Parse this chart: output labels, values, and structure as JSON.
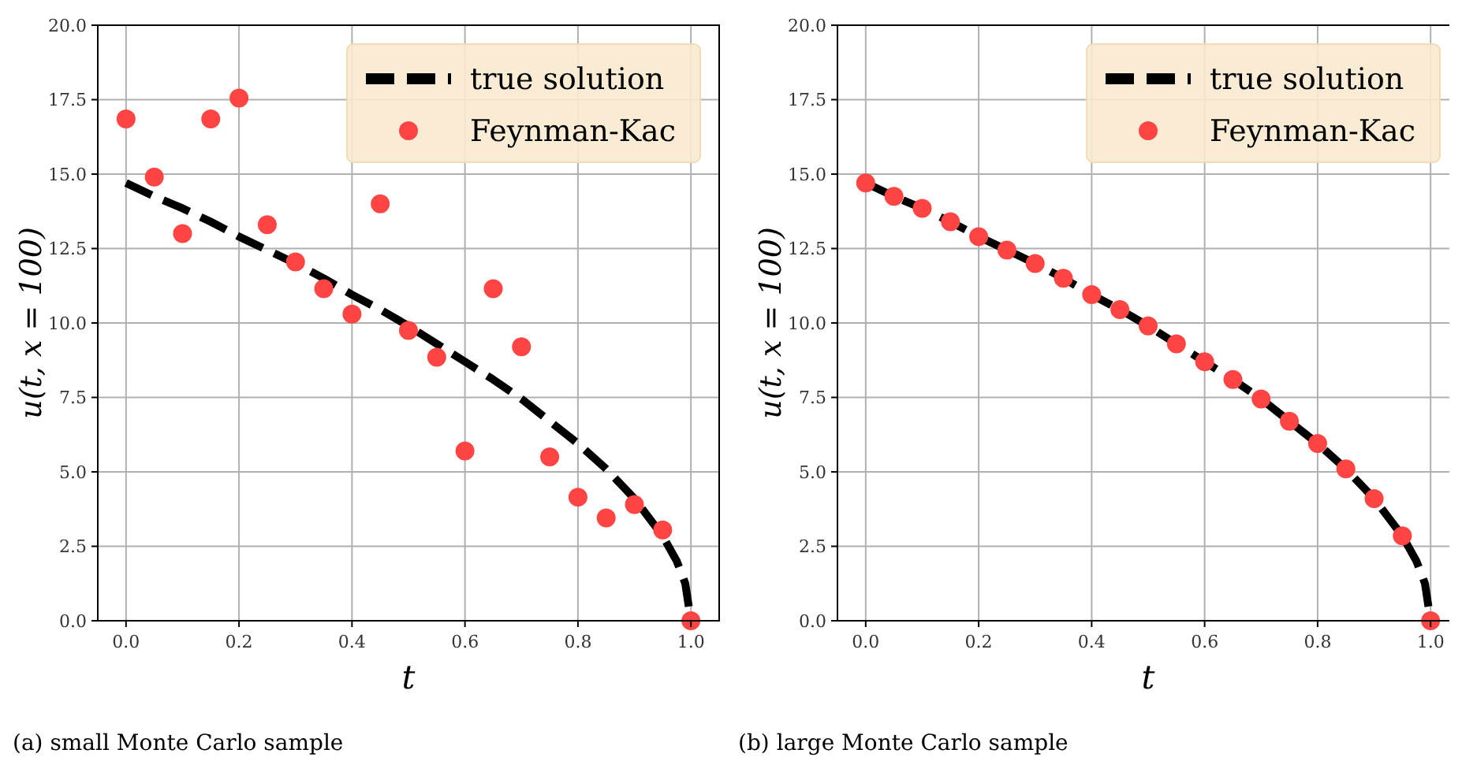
{
  "chart_data": [
    {
      "type": "scatter",
      "title": "(a) small Monte Carlo sample",
      "xlabel": "t",
      "ylabel": "u(t, x = 100)",
      "xlim": [
        -0.05,
        1.05
      ],
      "ylim": [
        0,
        20
      ],
      "xticks": [
        {
          "value": 0,
          "label": "0.0"
        },
        {
          "value": 0.2,
          "label": "0.2"
        },
        {
          "value": 0.4,
          "label": "0.4"
        },
        {
          "value": 0.6,
          "label": "0.6"
        },
        {
          "value": 0.8,
          "label": "0.8"
        },
        {
          "value": 1,
          "label": "1.0"
        }
      ],
      "yticks": [
        {
          "value": 0,
          "label": "0.0"
        },
        {
          "value": 2.5,
          "label": "2.5"
        },
        {
          "value": 5,
          "label": "5.0"
        },
        {
          "value": 7.5,
          "label": "7.5"
        },
        {
          "value": 10,
          "label": "10.0"
        },
        {
          "value": 12.5,
          "label": "12.5"
        },
        {
          "value": 15,
          "label": "15.0"
        },
        {
          "value": 17.5,
          "label": "17.5"
        },
        {
          "value": 20,
          "label": "20.0"
        }
      ],
      "grid": true,
      "legend": "top right",
      "series": [
        {
          "name": "true solution",
          "type": "line",
          "line_style": "dashed",
          "marker": "none",
          "color": "#000000",
          "x": [
            0,
            0.05,
            0.1,
            0.15,
            0.2,
            0.25,
            0.3,
            0.35,
            0.4,
            0.45,
            0.5,
            0.55,
            0.6,
            0.65,
            0.7,
            0.75,
            0.8,
            0.85,
            0.9,
            0.95,
            0.975,
            0.99,
            1
          ],
          "values": [
            14.7,
            14.25,
            13.85,
            13.4,
            12.9,
            12.45,
            12.0,
            11.5,
            10.95,
            10.45,
            9.9,
            9.3,
            8.7,
            8.1,
            7.45,
            6.7,
            5.95,
            5.1,
            4.1,
            2.85,
            2.0,
            1.25,
            0
          ]
        },
        {
          "name": "Feynman-Kac",
          "type": "scatter",
          "marker": "circle",
          "color": "#ff4444",
          "x": [
            0,
            0.05,
            0.1,
            0.15,
            0.2,
            0.25,
            0.3,
            0.35,
            0.4,
            0.45,
            0.5,
            0.55,
            0.6,
            0.65,
            0.7,
            0.75,
            0.8,
            0.85,
            0.9,
            0.95,
            1
          ],
          "values": [
            16.85,
            14.9,
            13.0,
            16.85,
            17.55,
            13.3,
            12.05,
            11.15,
            10.3,
            14.0,
            9.75,
            8.85,
            5.7,
            11.15,
            9.2,
            5.5,
            4.15,
            3.45,
            3.9,
            3.05,
            0
          ]
        }
      ]
    },
    {
      "type": "scatter",
      "title": "(b) large Monte Carlo sample",
      "xlabel": "t",
      "ylabel": "u(t, x = 100)",
      "xlim": [
        -0.05,
        1.05
      ],
      "ylim": [
        0,
        20
      ],
      "xticks": [
        {
          "value": 0,
          "label": "0.0"
        },
        {
          "value": 0.2,
          "label": "0.2"
        },
        {
          "value": 0.4,
          "label": "0.4"
        },
        {
          "value": 0.6,
          "label": "0.6"
        },
        {
          "value": 0.8,
          "label": "0.8"
        },
        {
          "value": 1,
          "label": "1.0"
        }
      ],
      "yticks": [
        {
          "value": 0,
          "label": "0.0"
        },
        {
          "value": 2.5,
          "label": "2.5"
        },
        {
          "value": 5,
          "label": "5.0"
        },
        {
          "value": 7.5,
          "label": "7.5"
        },
        {
          "value": 10,
          "label": "10.0"
        },
        {
          "value": 12.5,
          "label": "12.5"
        },
        {
          "value": 15,
          "label": "15.0"
        },
        {
          "value": 17.5,
          "label": "17.5"
        },
        {
          "value": 20,
          "label": "20.0"
        }
      ],
      "grid": true,
      "legend": "top right",
      "series": [
        {
          "name": "true solution",
          "type": "line",
          "line_style": "dashed",
          "marker": "none",
          "color": "#000000",
          "x": [
            0,
            0.05,
            0.1,
            0.15,
            0.2,
            0.25,
            0.3,
            0.35,
            0.4,
            0.45,
            0.5,
            0.55,
            0.6,
            0.65,
            0.7,
            0.75,
            0.8,
            0.85,
            0.9,
            0.95,
            0.975,
            0.99,
            1
          ],
          "values": [
            14.7,
            14.25,
            13.85,
            13.4,
            12.9,
            12.45,
            12.0,
            11.5,
            10.95,
            10.45,
            9.9,
            9.3,
            8.7,
            8.1,
            7.45,
            6.7,
            5.95,
            5.1,
            4.1,
            2.85,
            2.0,
            1.25,
            0
          ]
        },
        {
          "name": "Feynman-Kac",
          "type": "scatter",
          "marker": "circle",
          "color": "#ff4444",
          "x": [
            0,
            0.05,
            0.1,
            0.15,
            0.2,
            0.25,
            0.3,
            0.35,
            0.4,
            0.45,
            0.5,
            0.55,
            0.6,
            0.65,
            0.7,
            0.75,
            0.8,
            0.85,
            0.9,
            0.95,
            1
          ],
          "values": [
            14.7,
            14.25,
            13.85,
            13.4,
            12.9,
            12.45,
            12.0,
            11.5,
            10.95,
            10.45,
            9.9,
            9.3,
            8.7,
            8.1,
            7.45,
            6.7,
            5.95,
            5.1,
            4.1,
            2.85,
            0
          ]
        }
      ]
    }
  ]
}
